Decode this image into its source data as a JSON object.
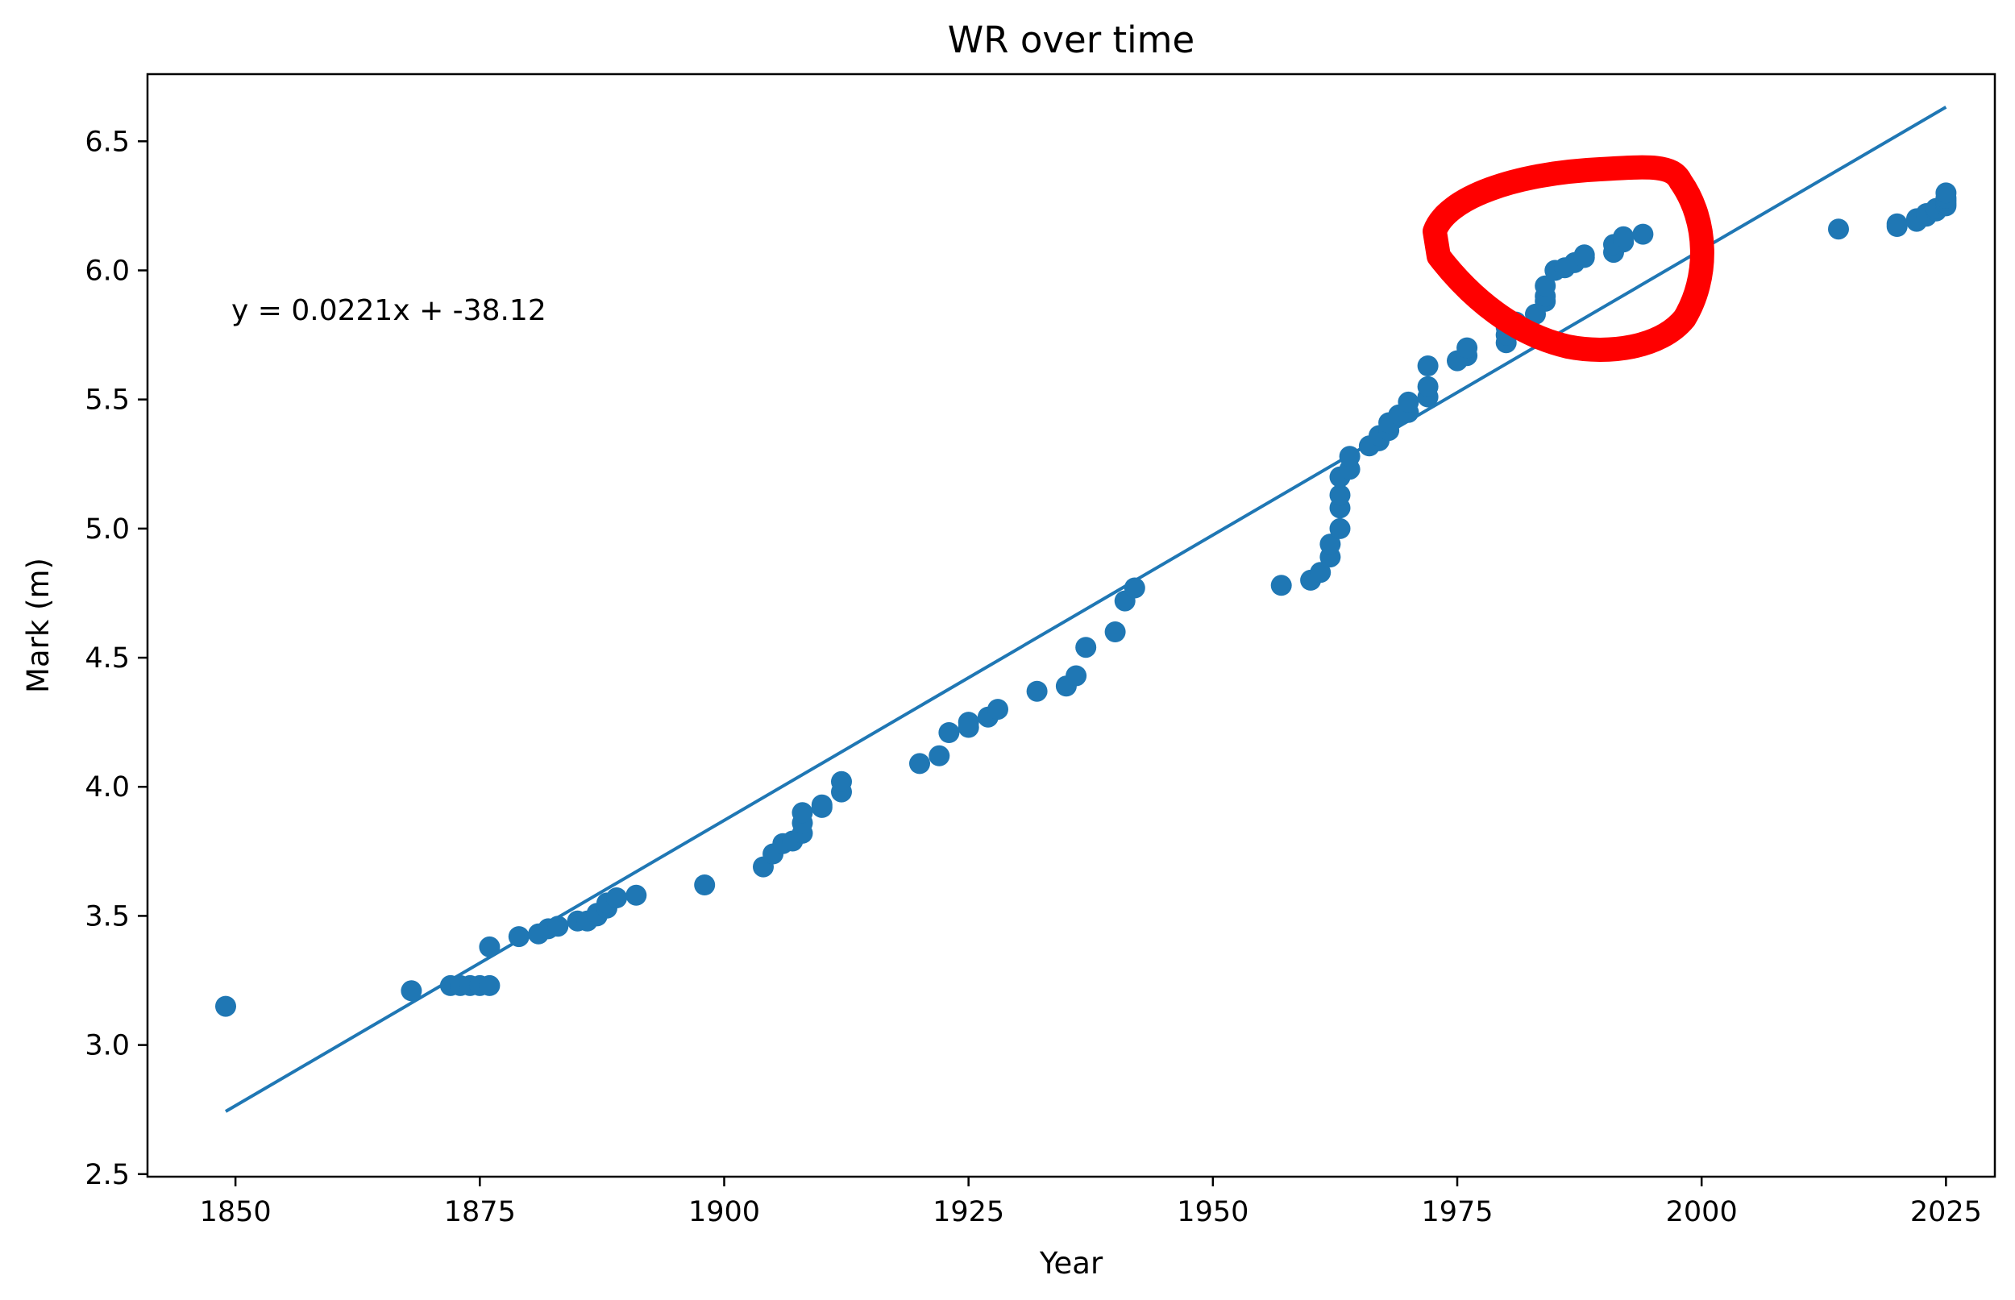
{
  "chart_data": {
    "type": "scatter",
    "title": "WR over time",
    "xlabel": "Year",
    "ylabel": "Mark (m)",
    "xlim": [
      1841,
      2030
    ],
    "ylim": [
      2.49,
      6.76
    ],
    "xticks": [
      1850,
      1875,
      1900,
      1925,
      1950,
      1975,
      2000,
      2025
    ],
    "yticks": [
      2.5,
      3.0,
      3.5,
      4.0,
      4.5,
      5.0,
      5.5,
      6.0,
      6.5
    ],
    "grid": false,
    "legend": "none",
    "point_color": "#1f77b4",
    "fit_line": {
      "label": "y = 0.0221x + -38.12",
      "slope": 0.0221,
      "intercept": -38.12,
      "x_range": [
        1849,
        2025
      ],
      "color": "#1f77b4"
    },
    "points": [
      [
        1849,
        3.15
      ],
      [
        1868,
        3.21
      ],
      [
        1872,
        3.23
      ],
      [
        1873,
        3.23
      ],
      [
        1874,
        3.23
      ],
      [
        1875,
        3.23
      ],
      [
        1876,
        3.23
      ],
      [
        1876,
        3.38
      ],
      [
        1879,
        3.42
      ],
      [
        1881,
        3.43
      ],
      [
        1882,
        3.45
      ],
      [
        1883,
        3.46
      ],
      [
        1885,
        3.48
      ],
      [
        1886,
        3.48
      ],
      [
        1887,
        3.5
      ],
      [
        1887,
        3.51
      ],
      [
        1888,
        3.53
      ],
      [
        1888,
        3.55
      ],
      [
        1889,
        3.57
      ],
      [
        1891,
        3.58
      ],
      [
        1898,
        3.62
      ],
      [
        1904,
        3.69
      ],
      [
        1905,
        3.74
      ],
      [
        1906,
        3.78
      ],
      [
        1907,
        3.79
      ],
      [
        1908,
        3.82
      ],
      [
        1908,
        3.86
      ],
      [
        1908,
        3.9
      ],
      [
        1910,
        3.92
      ],
      [
        1910,
        3.93
      ],
      [
        1912,
        3.98
      ],
      [
        1912,
        4.02
      ],
      [
        1920,
        4.09
      ],
      [
        1922,
        4.12
      ],
      [
        1923,
        4.21
      ],
      [
        1925,
        4.23
      ],
      [
        1925,
        4.25
      ],
      [
        1927,
        4.27
      ],
      [
        1928,
        4.3
      ],
      [
        1932,
        4.37
      ],
      [
        1935,
        4.39
      ],
      [
        1936,
        4.43
      ],
      [
        1937,
        4.54
      ],
      [
        1940,
        4.6
      ],
      [
        1941,
        4.72
      ],
      [
        1942,
        4.77
      ],
      [
        1957,
        4.78
      ],
      [
        1960,
        4.8
      ],
      [
        1961,
        4.83
      ],
      [
        1962,
        4.89
      ],
      [
        1962,
        4.94
      ],
      [
        1963,
        5.0
      ],
      [
        1963,
        5.08
      ],
      [
        1963,
        5.13
      ],
      [
        1963,
        5.2
      ],
      [
        1964,
        5.23
      ],
      [
        1964,
        5.28
      ],
      [
        1966,
        5.32
      ],
      [
        1967,
        5.34
      ],
      [
        1967,
        5.36
      ],
      [
        1968,
        5.38
      ],
      [
        1968,
        5.41
      ],
      [
        1969,
        5.44
      ],
      [
        1970,
        5.45
      ],
      [
        1970,
        5.49
      ],
      [
        1972,
        5.51
      ],
      [
        1972,
        5.55
      ],
      [
        1972,
        5.63
      ],
      [
        1975,
        5.65
      ],
      [
        1976,
        5.67
      ],
      [
        1976,
        5.7
      ],
      [
        1980,
        5.72
      ],
      [
        1980,
        5.75
      ],
      [
        1980,
        5.78
      ],
      [
        1981,
        5.8
      ],
      [
        1983,
        5.83
      ],
      [
        1984,
        5.88
      ],
      [
        1984,
        5.9
      ],
      [
        1984,
        5.94
      ],
      [
        1985,
        6.0
      ],
      [
        1986,
        6.01
      ],
      [
        1987,
        6.03
      ],
      [
        1988,
        6.05
      ],
      [
        1988,
        6.06
      ],
      [
        1991,
        6.07
      ],
      [
        1991,
        6.1
      ],
      [
        1992,
        6.11
      ],
      [
        1992,
        6.13
      ],
      [
        1994,
        6.14
      ],
      [
        2014,
        6.16
      ],
      [
        2020,
        6.17
      ],
      [
        2020,
        6.18
      ],
      [
        2022,
        6.19
      ],
      [
        2022,
        6.2
      ],
      [
        2023,
        6.21
      ],
      [
        2023,
        6.22
      ],
      [
        2024,
        6.23
      ],
      [
        2024,
        6.24
      ],
      [
        2025,
        6.25
      ],
      [
        2025,
        6.26
      ],
      [
        2025,
        6.27
      ],
      [
        2025,
        6.28
      ],
      [
        2025,
        6.3
      ]
    ],
    "annotation_highlight": {
      "shape": "hand-drawn circle",
      "color": "#ff0000",
      "around_years": [
        1976,
        2000
      ]
    }
  }
}
